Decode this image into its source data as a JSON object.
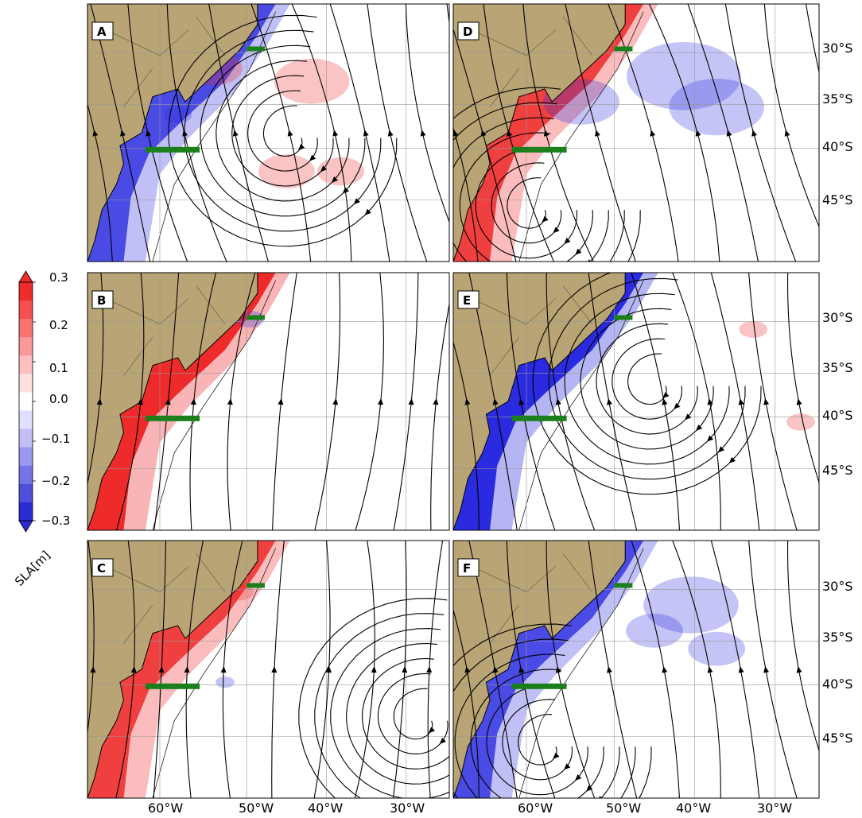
{
  "figure": {
    "panels": [
      {
        "id": "A",
        "land_anomaly": "negative",
        "coast_sign": -1,
        "coast_strength": 0.85,
        "cyclone": [
          0.56,
          0.52
        ],
        "flow_angle": -65,
        "offshore_patches": [
          {
            "s": 1,
            "c": [
              0.35,
              0.25
            ],
            "r": 0.06
          },
          {
            "s": 1,
            "c": [
              0.62,
              0.3
            ],
            "r": 0.08
          },
          {
            "s": 1,
            "c": [
              0.55,
              0.65
            ],
            "r": 0.06
          },
          {
            "s": 1,
            "c": [
              0.7,
              0.65
            ],
            "r": 0.05
          },
          {
            "s": -1,
            "c": [
              0.25,
              0.43
            ],
            "r": 0.03
          }
        ]
      },
      {
        "id": "D",
        "land_anomaly": "positive",
        "coast_sign": 1,
        "coast_strength": 0.9,
        "cyclone": [
          0.22,
          0.8
        ],
        "flow_angle": -60,
        "offshore_patches": [
          {
            "s": -1,
            "c": [
              0.35,
              0.38
            ],
            "r": 0.08
          },
          {
            "s": -1,
            "c": [
              0.63,
              0.28
            ],
            "r": 0.12
          },
          {
            "s": -1,
            "c": [
              0.72,
              0.4
            ],
            "r": 0.1
          }
        ]
      },
      {
        "id": "B",
        "land_anomaly": "positive",
        "coast_sign": 1,
        "coast_strength": 1.0,
        "cyclone": null,
        "flow_angle": -100,
        "offshore_patches": [
          {
            "s": -1,
            "c": [
              0.45,
              0.18
            ],
            "r": 0.03
          }
        ]
      },
      {
        "id": "E",
        "land_anomaly": "negative",
        "coast_sign": -1,
        "coast_strength": 1.0,
        "cyclone": [
          0.55,
          0.44
        ],
        "flow_angle": -70,
        "offshore_patches": [
          {
            "s": 1,
            "c": [
              0.95,
              0.58
            ],
            "r": 0.03
          },
          {
            "s": 1,
            "c": [
              0.82,
              0.22
            ],
            "r": 0.03
          }
        ]
      },
      {
        "id": "C",
        "land_anomaly": "positive",
        "coast_sign": 1,
        "coast_strength": 0.9,
        "cyclone": [
          0.92,
          0.7
        ],
        "flow_angle": -95,
        "offshore_patches": [
          {
            "s": 1,
            "c": [
              0.42,
              0.2
            ],
            "r": 0.03
          },
          {
            "s": -1,
            "c": [
              0.38,
              0.55
            ],
            "r": 0.02
          }
        ]
      },
      {
        "id": "F",
        "land_anomaly": "positive",
        "coast_sign": -1,
        "coast_strength": 0.85,
        "cyclone": [
          0.25,
          0.8
        ],
        "flow_angle": -70,
        "offshore_patches": [
          {
            "s": -1,
            "c": [
              0.55,
              0.35
            ],
            "r": 0.06
          },
          {
            "s": -1,
            "c": [
              0.65,
              0.25
            ],
            "r": 0.1
          },
          {
            "s": -1,
            "c": [
              0.72,
              0.42
            ],
            "r": 0.06
          }
        ]
      }
    ],
    "lon_ticks": [
      "60°W",
      "50°W",
      "40°W",
      "30°W"
    ],
    "lat_ticks": [
      "30°S",
      "35°S",
      "40°S",
      "45°S"
    ],
    "colorbar": {
      "label": "SLA[m]",
      "ticks": [
        "0.3",
        "0.2",
        "0.1",
        "0.0",
        "−0.1",
        "−0.2",
        "−0.3"
      ],
      "colors": [
        "#f02b2b",
        "#f54f4f",
        "#f87474",
        "#fa9999",
        "#fdbfbf",
        "#ffe0e0",
        "#ffffff",
        "#e0e0ff",
        "#bfbff5",
        "#9999ee",
        "#7474e5",
        "#4f4fdc",
        "#2b2bd4"
      ]
    },
    "colors": {
      "land": "#b8a474",
      "positive": "#ee2a2a",
      "negative": "#2a2ae0",
      "transect": "#1b7f1b",
      "ocean": "#ffffff"
    }
  }
}
